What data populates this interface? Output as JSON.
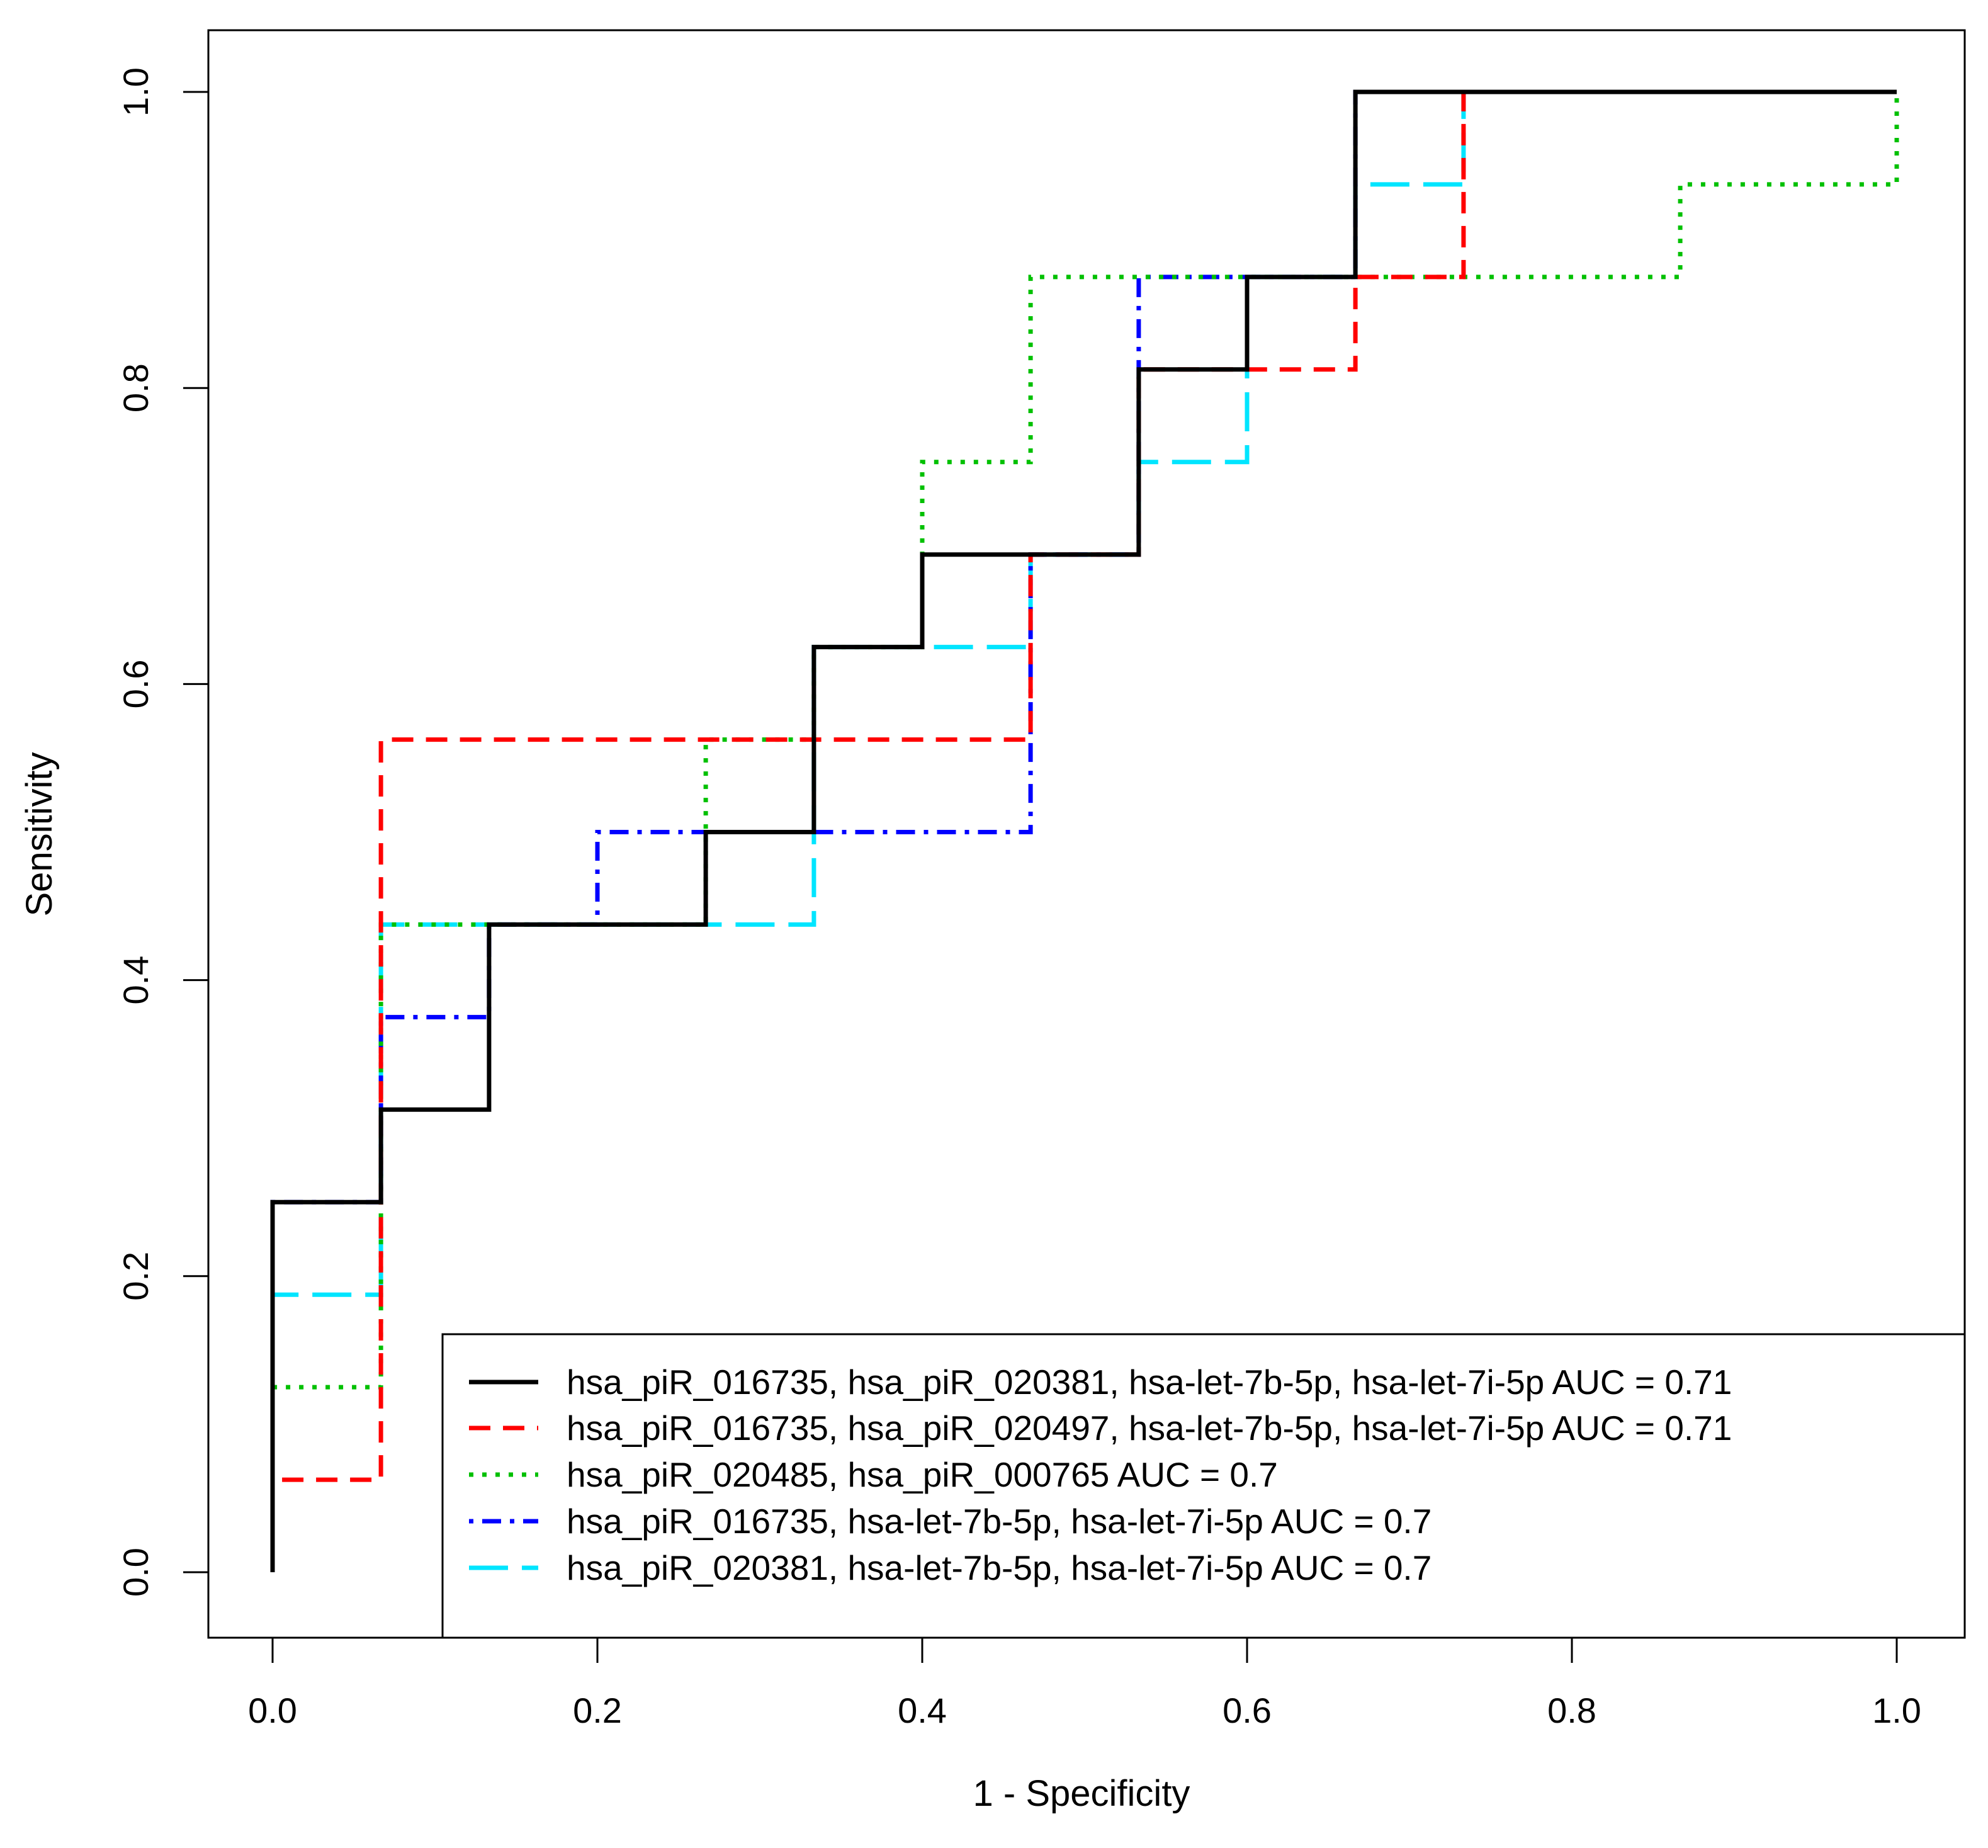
{
  "chart_data": {
    "type": "line",
    "title": "",
    "xlabel": "1 - Specificity",
    "ylabel": "Sensitivity",
    "xlim": [
      0,
      1
    ],
    "ylim": [
      0,
      1
    ],
    "x_ticks": [
      "0.0",
      "0.2",
      "0.4",
      "0.6",
      "0.8",
      "1.0"
    ],
    "y_ticks": [
      "0.0",
      "0.2",
      "0.4",
      "0.6",
      "0.8",
      "1.0"
    ],
    "legend_position": "bottom-right",
    "series": [
      {
        "name": "hsa_piR_016735, hsa_piR_020381, hsa-let-7b-5p, hsa-let-7i-5p AUC =  0.71",
        "color": "#000000",
        "dash": "solid",
        "x": [
          0,
          0,
          0.0667,
          0.0667,
          0.1333,
          0.1333,
          0.2667,
          0.2667,
          0.3333,
          0.3333,
          0.4,
          0.4,
          0.5333,
          0.5333,
          0.6,
          0.6,
          0.6667,
          0.6667,
          1.0
        ],
        "y": [
          0,
          0.25,
          0.25,
          0.3125,
          0.3125,
          0.4375,
          0.4375,
          0.5,
          0.5,
          0.625,
          0.625,
          0.6875,
          0.6875,
          0.8125,
          0.8125,
          0.875,
          0.875,
          1.0,
          1.0
        ]
      },
      {
        "name": "hsa_piR_016735, hsa_piR_020497, hsa-let-7b-5p, hsa-let-7i-5p AUC =  0.71",
        "color": "#ff0000",
        "dash": "dashed",
        "x": [
          0,
          0,
          0.0667,
          0.0667,
          0.4667,
          0.4667,
          0.5333,
          0.5333,
          0.6667,
          0.6667,
          0.7333,
          0.7333,
          1.0
        ],
        "y": [
          0,
          0.0625,
          0.0625,
          0.5625,
          0.5625,
          0.6875,
          0.6875,
          0.8125,
          0.8125,
          0.875,
          0.875,
          1.0,
          1.0
        ]
      },
      {
        "name": "hsa_piR_020485, hsa_piR_000765 AUC =  0.7",
        "color": "#00c000",
        "dash": "dotted",
        "x": [
          0,
          0,
          0.0667,
          0.0667,
          0.2667,
          0.2667,
          0.3333,
          0.3333,
          0.4,
          0.4,
          0.4667,
          0.4667,
          0.8667,
          0.8667,
          1.0,
          1.0
        ],
        "y": [
          0,
          0.125,
          0.125,
          0.4375,
          0.4375,
          0.5625,
          0.5625,
          0.625,
          0.625,
          0.75,
          0.75,
          0.875,
          0.875,
          0.9375,
          0.9375,
          1.0
        ]
      },
      {
        "name": "hsa_piR_016735, hsa-let-7b-5p, hsa-let-7i-5p AUC =  0.7",
        "color": "#0000ff",
        "dash": "dotdash",
        "x": [
          0,
          0,
          0.0667,
          0.0667,
          0.1333,
          0.1333,
          0.2,
          0.2,
          0.4667,
          0.4667,
          0.5333,
          0.5333,
          0.6667,
          0.6667,
          1.0
        ],
        "y": [
          0,
          0.25,
          0.25,
          0.375,
          0.375,
          0.4375,
          0.4375,
          0.5,
          0.5,
          0.6875,
          0.6875,
          0.875,
          0.875,
          1.0,
          1.0
        ]
      },
      {
        "name": "hsa_piR_020381, hsa-let-7b-5p, hsa-let-7i-5p AUC =  0.7",
        "color": "#00e5ff",
        "dash": "longdash",
        "x": [
          0,
          0,
          0.0667,
          0.0667,
          0.3333,
          0.3333,
          0.4667,
          0.4667,
          0.5333,
          0.5333,
          0.6,
          0.6,
          0.6667,
          0.6667,
          0.7333,
          0.7333,
          1.0
        ],
        "y": [
          0,
          0.1875,
          0.1875,
          0.4375,
          0.4375,
          0.625,
          0.625,
          0.6875,
          0.6875,
          0.75,
          0.75,
          0.875,
          0.875,
          0.9375,
          0.9375,
          1.0,
          1.0
        ]
      }
    ]
  }
}
